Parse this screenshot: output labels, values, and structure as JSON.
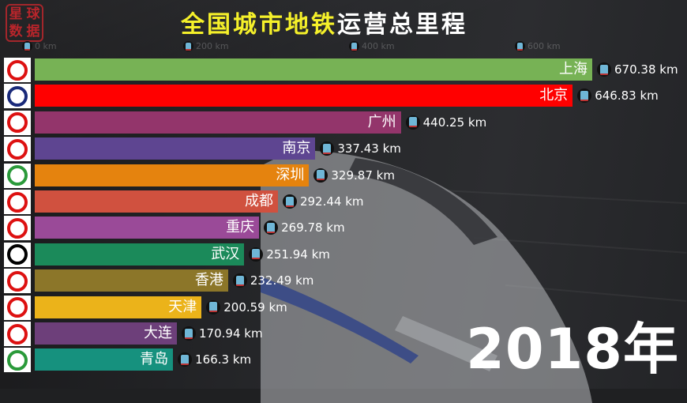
{
  "chart_data": {
    "type": "bar",
    "orientation": "horizontal",
    "title": "全国城市地铁运营总里程",
    "title_parts": {
      "highlight": "全国城市地铁",
      "rest": "运营总里程"
    },
    "xlabel": "",
    "ylabel": "",
    "unit": "km",
    "period": "2018年",
    "xlim": [
      0,
      670.38
    ],
    "x_ticks": [
      "0 km",
      "200 km",
      "400 km",
      "600 km"
    ],
    "grid": false,
    "legend": "none",
    "categories": [
      "上海",
      "北京",
      "广州",
      "南京",
      "深圳",
      "成都",
      "重庆",
      "武汉",
      "香港",
      "天津",
      "大连",
      "青岛"
    ],
    "values": [
      670.38,
      646.83,
      440.25,
      337.43,
      329.87,
      292.44,
      269.78,
      251.94,
      232.49,
      200.59,
      170.94,
      166.3
    ],
    "value_labels": [
      "670.38 km",
      "646.83 km",
      "440.25 km",
      "337.43 km",
      "329.87 km",
      "292.44 km",
      "269.78 km",
      "251.94 km",
      "232.49 km",
      "200.59 km",
      "170.94 km",
      "166.3 km"
    ],
    "colors": [
      "#77b255",
      "#ff0000",
      "#93356b",
      "#5e4591",
      "#e5830e",
      "#d0513f",
      "#9a4a98",
      "#1b8a5a",
      "#8c7629",
      "#ebb31a",
      "#6d3f7a",
      "#16917e"
    ]
  },
  "watermark": {
    "chars": [
      "星",
      "球",
      "数",
      "据"
    ]
  },
  "header": {
    "title_highlight": "全国城市地铁",
    "title_rest": "运营总里程"
  },
  "axis": {
    "ticks": [
      {
        "label": "0 km",
        "x": 28
      },
      {
        "label": "200 km",
        "x": 232
      },
      {
        "label": "400 km",
        "x": 442
      },
      {
        "label": "600 km",
        "x": 652
      }
    ]
  },
  "rows": [
    {
      "city": "上海",
      "value": "670.38 km",
      "km": 670.38,
      "color": "#77b255",
      "logo": "shanghai-metro-logo"
    },
    {
      "city": "北京",
      "value": "646.83 km",
      "km": 646.83,
      "color": "#ff0000",
      "logo": "beijing-metro-logo"
    },
    {
      "city": "广州",
      "value": "440.25 km",
      "km": 440.25,
      "color": "#93356b",
      "logo": "guangzhou-metro-logo"
    },
    {
      "city": "南京",
      "value": "337.43 km",
      "km": 337.43,
      "color": "#5e4591",
      "logo": "nanjing-metro-logo"
    },
    {
      "city": "深圳",
      "value": "329.87 km",
      "km": 329.87,
      "color": "#e5830e",
      "logo": "shenzhen-metro-logo"
    },
    {
      "city": "成都",
      "value": "292.44 km",
      "km": 292.44,
      "color": "#d0513f",
      "logo": "chengdu-metro-logo"
    },
    {
      "city": "重庆",
      "value": "269.78 km",
      "km": 269.78,
      "color": "#9a4a98",
      "logo": "chongqing-rail-logo"
    },
    {
      "city": "武汉",
      "value": "251.94 km",
      "km": 251.94,
      "color": "#1b8a5a",
      "logo": "wuhan-metro-logo"
    },
    {
      "city": "香港",
      "value": "232.49 km",
      "km": 232.49,
      "color": "#8c7629",
      "logo": "hongkong-mtr-logo"
    },
    {
      "city": "天津",
      "value": "200.59 km",
      "km": 200.59,
      "color": "#ebb31a",
      "logo": "tianjin-metro-logo"
    },
    {
      "city": "大连",
      "value": "170.94 km",
      "km": 170.94,
      "color": "#6d3f7a",
      "logo": "dalian-metro-logo"
    },
    {
      "city": "青岛",
      "value": "166.3 km",
      "km": 166.3,
      "color": "#16917e",
      "logo": "qingdao-metro-logo"
    }
  ],
  "year_label": "2018年"
}
